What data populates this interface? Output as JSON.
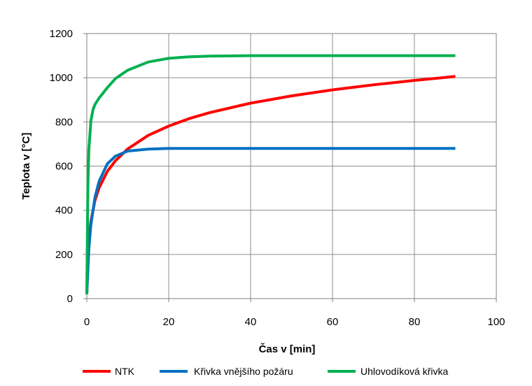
{
  "chart_data": {
    "type": "line",
    "title": "",
    "xlabel": "Čas v [min]",
    "ylabel": "Teplota v [°C]",
    "xlim": [
      0,
      100
    ],
    "ylim": [
      0,
      1200
    ],
    "xticks": [
      0,
      20,
      40,
      60,
      80,
      100
    ],
    "yticks": [
      0,
      200,
      400,
      600,
      800,
      1000,
      1200
    ],
    "grid": true,
    "legend_position": "bottom",
    "series": [
      {
        "name": "NTK",
        "color": "#ff0000",
        "x": [
          0,
          0.5,
          1,
          2,
          3,
          5,
          7,
          10,
          15,
          20,
          25,
          30,
          40,
          50,
          60,
          70,
          80,
          90
        ],
        "y": [
          20,
          261,
          349,
          445,
          502,
          576,
          624,
          678,
          739,
          781,
          815,
          842,
          885,
          918,
          945,
          968,
          988,
          1006
        ]
      },
      {
        "name": "Křivka vnějšího požáru",
        "color": "#0070c0",
        "x": [
          0,
          0.5,
          1,
          2,
          3,
          5,
          7,
          10,
          15,
          20,
          25,
          30,
          40,
          50,
          60,
          70,
          80,
          90
        ],
        "y": [
          20,
          226,
          333,
          459,
          531,
          610,
          645,
          668,
          677,
          680,
          680,
          680,
          680,
          680,
          680,
          680,
          680,
          680
        ]
      },
      {
        "name": "Uhlovodíková křivka",
        "color": "#00b050",
        "x": [
          0,
          0.25,
          0.5,
          1,
          1.5,
          2,
          3,
          5,
          7,
          10,
          15,
          20,
          25,
          30,
          40,
          50,
          60,
          70,
          80,
          90
        ],
        "y": [
          20,
          499,
          671,
          804,
          855,
          879,
          908,
          955,
          996,
          1034,
          1071,
          1088,
          1095,
          1098,
          1100,
          1100,
          1100,
          1100,
          1100,
          1100
        ]
      }
    ]
  }
}
